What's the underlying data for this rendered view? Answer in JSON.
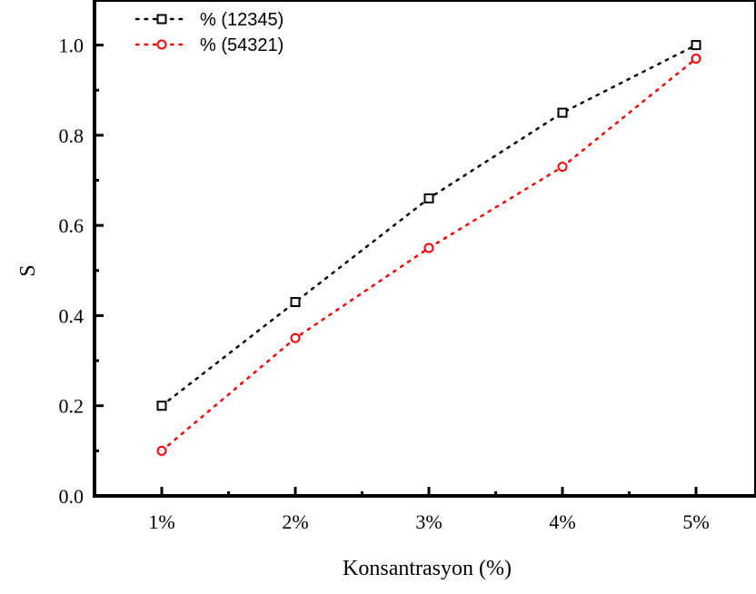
{
  "chart_data": {
    "type": "scatter",
    "title": "",
    "xlabel": "Konsantrasyon (%)",
    "ylabel": "S",
    "categories": [
      "1%",
      "2%",
      "3%",
      "4%",
      "5%"
    ],
    "ylim": [
      0.0,
      1.1
    ],
    "yticks": [
      "0.0",
      "0.2",
      "0.4",
      "0.6",
      "0.8",
      "1.0"
    ],
    "grid": false,
    "legend_position": "top-left",
    "series": [
      {
        "name": "% (12345)",
        "values": [
          0.2,
          0.43,
          0.66,
          0.85,
          1.0
        ],
        "color": "#000000",
        "marker": "square-open",
        "line": "dotted"
      },
      {
        "name": "% (54321)",
        "values": [
          0.1,
          0.35,
          0.55,
          0.73,
          0.97
        ],
        "color": "#ff0000",
        "marker": "circle-open",
        "line": "dotted"
      }
    ]
  }
}
